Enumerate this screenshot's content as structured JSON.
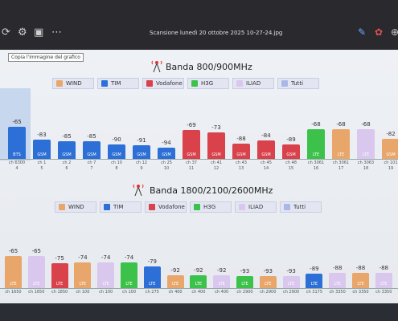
{
  "window": {
    "title": "Scansione lunedì 20 ottobre 2025 10-27-24.jpg",
    "icons": [
      "refresh-icon",
      "settings-icon",
      "crop-icon",
      "more-icon"
    ]
  },
  "tooltip": "Copia l'immagine del grafico",
  "band1": {
    "title": "Banda 800/900MHz",
    "legend": [
      {
        "label": "WIND",
        "color": "#e8a66a"
      },
      {
        "label": "TIM",
        "color": "#2c6fd6"
      },
      {
        "label": "Vodafone",
        "color": "#d9414b"
      },
      {
        "label": "H3G",
        "color": "#3cc24a"
      },
      {
        "label": "ILIAD",
        "color": "#d9c7ee"
      },
      {
        "label": "Tutti",
        "color": "#a9b8e6"
      }
    ],
    "bars": [
      {
        "value": "-65",
        "color": "#2c6fd6",
        "tag": "BTS",
        "label": "ch 6300",
        "sub": "4"
      },
      {
        "value": "-83",
        "color": "#2c6fd6",
        "tag": "GSM",
        "label": "ch 1",
        "sub": "5"
      },
      {
        "value": "-85",
        "color": "#2c6fd6",
        "tag": "GSM",
        "label": "ch 2",
        "sub": "6"
      },
      {
        "value": "-85",
        "color": "#2c6fd6",
        "tag": "GSM",
        "label": "ch 7",
        "sub": "7"
      },
      {
        "value": "-90",
        "color": "#2c6fd6",
        "tag": "GSM",
        "label": "ch 10",
        "sub": "8"
      },
      {
        "value": "-91",
        "color": "#2c6fd6",
        "tag": "GSM",
        "label": "ch 12",
        "sub": "9"
      },
      {
        "value": "-94",
        "color": "#2c6fd6",
        "tag": "GSM",
        "label": "ch 25",
        "sub": "10"
      },
      {
        "value": "-69",
        "color": "#d9414b",
        "tag": "GSM",
        "label": "ch 37",
        "sub": "11"
      },
      {
        "value": "-73",
        "color": "#d9414b",
        "tag": "GSM",
        "label": "ch 41",
        "sub": "12"
      },
      {
        "value": "-88",
        "color": "#d9414b",
        "tag": "GSM",
        "label": "ch 43",
        "sub": "13"
      },
      {
        "value": "-84",
        "color": "#d9414b",
        "tag": "GSM",
        "label": "ch 45",
        "sub": "14"
      },
      {
        "value": "-89",
        "color": "#d9414b",
        "tag": "GSM",
        "label": "ch 48",
        "sub": "15"
      },
      {
        "value": "-68",
        "color": "#3cc24a",
        "tag": "LTE",
        "label": "ch 3061",
        "sub": "16"
      },
      {
        "value": "-68",
        "color": "#e8a66a",
        "tag": "LTE",
        "label": "ch 3061",
        "sub": "17"
      },
      {
        "value": "-68",
        "color": "#d9c7ee",
        "tag": "LTE",
        "label": "ch 3063",
        "sub": "18"
      },
      {
        "value": "-82",
        "color": "#e8a66a",
        "tag": "GSM",
        "label": "ch 101",
        "sub": "19"
      }
    ]
  },
  "band2": {
    "title": "Banda 1800/2100/2600MHz",
    "legend": [
      {
        "label": "WIND",
        "color": "#e8a66a"
      },
      {
        "label": "TIM",
        "color": "#2c6fd6"
      },
      {
        "label": "Vodafone",
        "color": "#d9414b"
      },
      {
        "label": "H3G",
        "color": "#3cc24a"
      },
      {
        "label": "ILIAD",
        "color": "#d9c7ee"
      },
      {
        "label": "Tutti",
        "color": "#a9b8e6"
      }
    ],
    "bars": [
      {
        "value": "-65",
        "color": "#e8a66a",
        "tag": "LTE",
        "label": "ch 1650",
        "sub": ""
      },
      {
        "value": "-65",
        "color": "#d9c7ee",
        "tag": "LTE",
        "label": "ch 1650",
        "sub": ""
      },
      {
        "value": "-75",
        "color": "#d9414b",
        "tag": "LTE",
        "label": "ch 1850",
        "sub": ""
      },
      {
        "value": "-74",
        "color": "#e8a66a",
        "tag": "LTE",
        "label": "ch 100",
        "sub": ""
      },
      {
        "value": "-74",
        "color": "#d9c7ee",
        "tag": "LTE",
        "label": "ch 100",
        "sub": ""
      },
      {
        "value": "-74",
        "color": "#3cc24a",
        "tag": "LTE",
        "label": "ch 100",
        "sub": ""
      },
      {
        "value": "-79",
        "color": "#2c6fd6",
        "tag": "LTE",
        "label": "ch 275",
        "sub": ""
      },
      {
        "value": "-92",
        "color": "#e8a66a",
        "tag": "LTE",
        "label": "ch 400",
        "sub": ""
      },
      {
        "value": "-92",
        "color": "#3cc24a",
        "tag": "LTE",
        "label": "ch 400",
        "sub": ""
      },
      {
        "value": "-92",
        "color": "#d9c7ee",
        "tag": "LTE",
        "label": "ch 400",
        "sub": ""
      },
      {
        "value": "-93",
        "color": "#3cc24a",
        "tag": "LTE",
        "label": "ch 2900",
        "sub": ""
      },
      {
        "value": "-93",
        "color": "#e8a66a",
        "tag": "LTE",
        "label": "ch 2900",
        "sub": ""
      },
      {
        "value": "-93",
        "color": "#d9c7ee",
        "tag": "LTE",
        "label": "ch 2900",
        "sub": ""
      },
      {
        "value": "-89",
        "color": "#2c6fd6",
        "tag": "LTE",
        "label": "ch 3175",
        "sub": ""
      },
      {
        "value": "-88",
        "color": "#d9c7ee",
        "tag": "LTE",
        "label": "ch 3350",
        "sub": ""
      },
      {
        "value": "-88",
        "color": "#e8a66a",
        "tag": "LTE",
        "label": "ch 3350",
        "sub": ""
      },
      {
        "value": "-88",
        "color": "#d9c7ee",
        "tag": "LTE",
        "label": "ch 3350",
        "sub": ""
      }
    ]
  }
}
